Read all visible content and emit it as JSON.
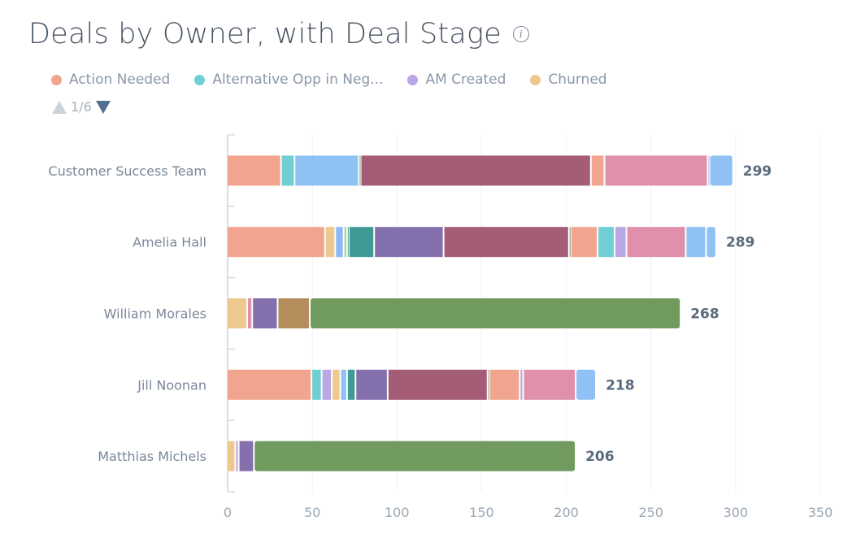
{
  "title": "Deals by Owner, with Deal Stage",
  "info_icon": "info-icon",
  "legend": {
    "items": [
      {
        "label": "Action Needed",
        "color": "#f2a58e"
      },
      {
        "label": "Alternative Opp in Neg...",
        "color": "#6fcfd3"
      },
      {
        "label": "AM Created",
        "color": "#b9a7e6"
      },
      {
        "label": "Churned",
        "color": "#efc88f"
      }
    ],
    "pager": "1/6"
  },
  "chart_data": {
    "type": "bar",
    "orientation": "horizontal",
    "stacked": true,
    "title": "Deals by Owner, with Deal Stage",
    "xlabel": "",
    "ylabel": "",
    "xlim": [
      0,
      350
    ],
    "xticks": [
      "0",
      "50",
      "100",
      "150",
      "200",
      "250",
      "300",
      "350"
    ],
    "grid": true,
    "legend_position": "top-left",
    "categories": [
      "Customer Success Team",
      "Amelia Hall",
      "William Morales",
      "Jill Noonan",
      "Matthias Michels"
    ],
    "totals": [
      299,
      289,
      268,
      218,
      206
    ],
    "stacks": [
      {
        "owner": "Customer Success Team",
        "segments": [
          {
            "stage": "Action Needed",
            "value": 32,
            "color": "#f2a58e"
          },
          {
            "stage": "Alternative Opp in Neg...",
            "value": 8,
            "color": "#6fcfd3"
          },
          {
            "stage": "Blue stage",
            "value": 38,
            "color": "#8fc1f5"
          },
          {
            "stage": "Green stage",
            "value": 1,
            "color": "#709a5e"
          },
          {
            "stage": "Dark rose stage",
            "value": 136,
            "color": "#a45c77"
          },
          {
            "stage": "Salmon stage",
            "value": 8,
            "color": "#f2a58e"
          },
          {
            "stage": "Pink stage",
            "value": 61,
            "color": "#e090ab"
          },
          {
            "stage": "Lavender stage",
            "value": 1,
            "color": "#b9a7e6"
          },
          {
            "stage": "Light blue stage",
            "value": 14,
            "color": "#8fc1f5"
          }
        ]
      },
      {
        "owner": "Amelia Hall",
        "segments": [
          {
            "stage": "Action Needed",
            "value": 58,
            "color": "#f2a58e"
          },
          {
            "stage": "Churned",
            "value": 6,
            "color": "#efc88f"
          },
          {
            "stage": "Blue stage",
            "value": 5,
            "color": "#8fb7f5"
          },
          {
            "stage": "Green stage",
            "value": 2,
            "color": "#a9d38e"
          },
          {
            "stage": "Teal line stage",
            "value": 1,
            "color": "#3f9a96"
          },
          {
            "stage": "Dark teal stage",
            "value": 15,
            "color": "#3f9a96"
          },
          {
            "stage": "Purple stage",
            "value": 41,
            "color": "#8470ac"
          },
          {
            "stage": "Dark rose stage",
            "value": 74,
            "color": "#a45c77"
          },
          {
            "stage": "Green thin stage",
            "value": 1,
            "color": "#709a5e"
          },
          {
            "stage": "Salmon stage",
            "value": 16,
            "color": "#f2a58e"
          },
          {
            "stage": "Alternative Opp in Neg...",
            "value": 10,
            "color": "#6fcfd3"
          },
          {
            "stage": "AM Created",
            "value": 7,
            "color": "#b9a7e6"
          },
          {
            "stage": "Pink stage",
            "value": 35,
            "color": "#e090ab"
          },
          {
            "stage": "Light blue stage",
            "value": 12,
            "color": "#8fc1f5"
          },
          {
            "stage": "Remainder",
            "value": 6,
            "color": "#8fc1f5"
          }
        ]
      },
      {
        "owner": "William Morales",
        "segments": [
          {
            "stage": "Churned",
            "value": 12,
            "color": "#efc88f"
          },
          {
            "stage": "Pink stage",
            "value": 3,
            "color": "#e090ab"
          },
          {
            "stage": "Purple stage",
            "value": 15,
            "color": "#8470ac"
          },
          {
            "stage": "Brown stage",
            "value": 19,
            "color": "#b58d5d"
          },
          {
            "stage": "Green stage",
            "value": 219,
            "color": "#709a5e"
          }
        ]
      },
      {
        "owner": "Jill Noonan",
        "segments": [
          {
            "stage": "Action Needed",
            "value": 50,
            "color": "#f2a58e"
          },
          {
            "stage": "Alternative Opp in Neg...",
            "value": 6,
            "color": "#6fcfd3"
          },
          {
            "stage": "AM Created",
            "value": 6,
            "color": "#b9a7e6"
          },
          {
            "stage": "Churned",
            "value": 5,
            "color": "#efc88f"
          },
          {
            "stage": "Blue stage",
            "value": 4,
            "color": "#8fc1f5"
          },
          {
            "stage": "Dark teal stage",
            "value": 5,
            "color": "#3f9a96"
          },
          {
            "stage": "Purple stage",
            "value": 19,
            "color": "#8470ac"
          },
          {
            "stage": "Dark rose stage",
            "value": 59,
            "color": "#a45c77"
          },
          {
            "stage": "Green thin stage",
            "value": 1,
            "color": "#709a5e"
          },
          {
            "stage": "Salmon stage",
            "value": 18,
            "color": "#f2a58e"
          },
          {
            "stage": "Lavender stage",
            "value": 2,
            "color": "#b9a7e6"
          },
          {
            "stage": "Pink stage",
            "value": 31,
            "color": "#e090ab"
          },
          {
            "stage": "Light blue stage",
            "value": 12,
            "color": "#8fc1f5"
          }
        ]
      },
      {
        "owner": "Matthias Michels",
        "segments": [
          {
            "stage": "Churned",
            "value": 5,
            "color": "#efc88f"
          },
          {
            "stage": "Lavender stage",
            "value": 2,
            "color": "#b9a7e6"
          },
          {
            "stage": "Purple stage",
            "value": 9,
            "color": "#8470ac"
          },
          {
            "stage": "Green stage",
            "value": 190,
            "color": "#709a5e"
          }
        ]
      }
    ]
  }
}
